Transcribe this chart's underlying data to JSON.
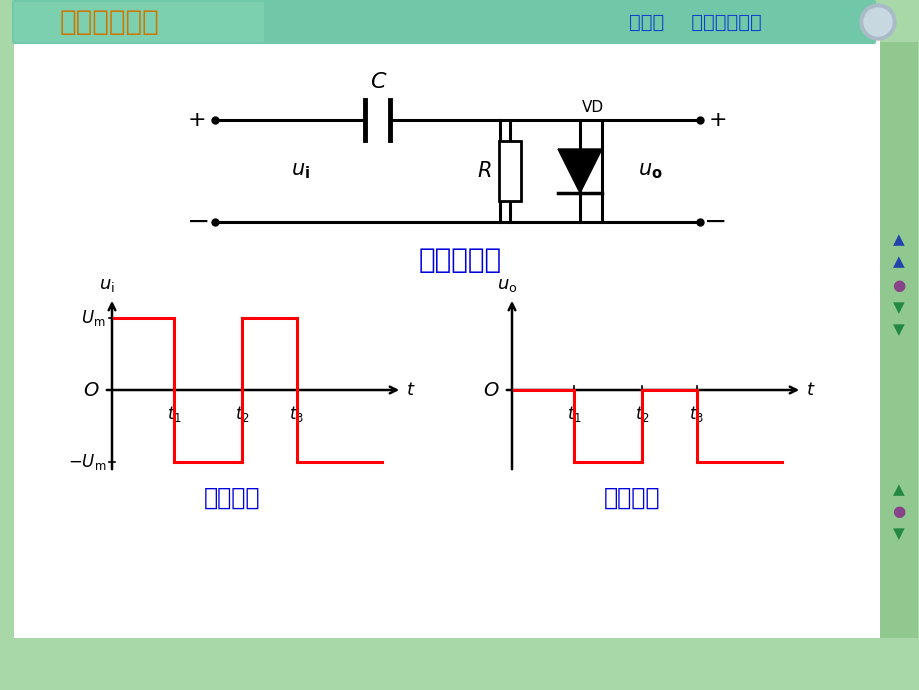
{
  "bg_color": "#a8d8a8",
  "header_color": "#70c8a8",
  "white_bg": "#ffffff",
  "sidebar_color": "#90c890",
  "logo_text": "模拟电子技术",
  "logo_color": "#cc7700",
  "title_text": "第一章    半导体二极管",
  "title_color": "#1144cc",
  "circuit_title": "正钳位电路",
  "circuit_title_color": "#0000dd",
  "input_label": "输入波形",
  "output_label": "输出波形",
  "label_color": "#0000dd",
  "wave_color": "#ff0000",
  "black": "#000000",
  "deco_circle_color": "#aabbc8"
}
